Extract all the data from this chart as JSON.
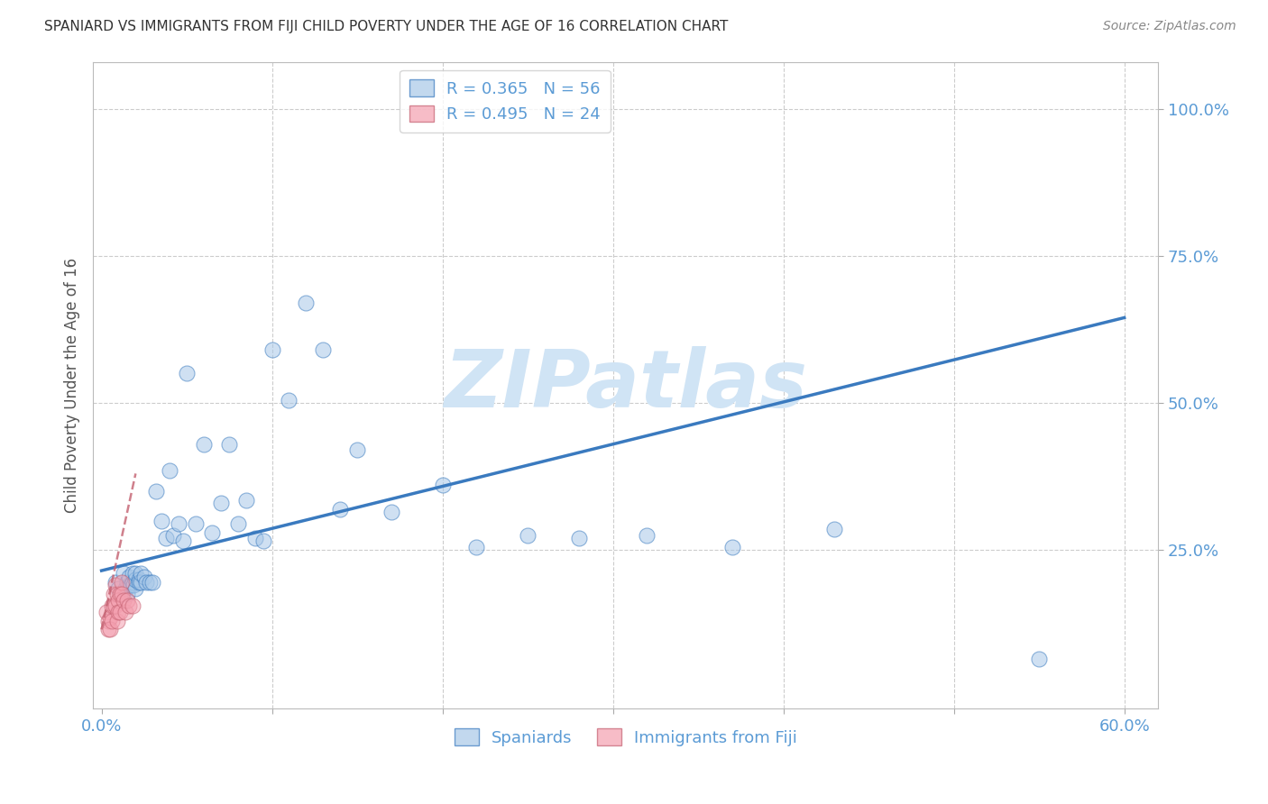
{
  "title": "SPANIARD VS IMMIGRANTS FROM FIJI CHILD POVERTY UNDER THE AGE OF 16 CORRELATION CHART",
  "source": "Source: ZipAtlas.com",
  "xlabel_label": "Spaniards",
  "xlabel_label2": "Immigrants from Fiji",
  "ylabel": "Child Poverty Under the Age of 16",
  "watermark": "ZIPatlas",
  "blue_R": 0.365,
  "blue_N": 56,
  "pink_R": 0.495,
  "pink_N": 24,
  "xlim": [
    -0.005,
    0.62
  ],
  "ylim": [
    -0.02,
    1.08
  ],
  "xticks": [
    0.0,
    0.1,
    0.2,
    0.3,
    0.4,
    0.5,
    0.6
  ],
  "yticks": [
    0.25,
    0.5,
    0.75,
    1.0
  ],
  "blue_scatter_x": [
    0.008,
    0.01,
    0.012,
    0.013,
    0.014,
    0.015,
    0.015,
    0.016,
    0.016,
    0.017,
    0.018,
    0.018,
    0.019,
    0.02,
    0.02,
    0.02,
    0.022,
    0.022,
    0.023,
    0.023,
    0.025,
    0.026,
    0.028,
    0.03,
    0.032,
    0.035,
    0.038,
    0.04,
    0.042,
    0.045,
    0.048,
    0.05,
    0.055,
    0.06,
    0.065,
    0.07,
    0.075,
    0.08,
    0.085,
    0.09,
    0.095,
    0.1,
    0.11,
    0.12,
    0.13,
    0.14,
    0.15,
    0.17,
    0.2,
    0.22,
    0.25,
    0.28,
    0.32,
    0.37,
    0.43,
    0.55
  ],
  "blue_scatter_y": [
    0.195,
    0.185,
    0.175,
    0.21,
    0.185,
    0.175,
    0.195,
    0.19,
    0.205,
    0.19,
    0.195,
    0.21,
    0.19,
    0.185,
    0.2,
    0.21,
    0.2,
    0.195,
    0.195,
    0.21,
    0.205,
    0.195,
    0.195,
    0.195,
    0.35,
    0.3,
    0.27,
    0.385,
    0.275,
    0.295,
    0.265,
    0.55,
    0.295,
    0.43,
    0.28,
    0.33,
    0.43,
    0.295,
    0.335,
    0.27,
    0.265,
    0.59,
    0.505,
    0.67,
    0.59,
    0.32,
    0.42,
    0.315,
    0.36,
    0.255,
    0.275,
    0.27,
    0.275,
    0.255,
    0.285,
    0.065
  ],
  "pink_scatter_x": [
    0.003,
    0.004,
    0.004,
    0.005,
    0.005,
    0.006,
    0.006,
    0.007,
    0.007,
    0.008,
    0.008,
    0.009,
    0.009,
    0.01,
    0.01,
    0.011,
    0.011,
    0.012,
    0.012,
    0.013,
    0.014,
    0.015,
    0.016,
    0.018
  ],
  "pink_scatter_y": [
    0.145,
    0.13,
    0.115,
    0.135,
    0.115,
    0.155,
    0.13,
    0.175,
    0.155,
    0.19,
    0.155,
    0.175,
    0.13,
    0.165,
    0.145,
    0.175,
    0.145,
    0.195,
    0.175,
    0.165,
    0.145,
    0.165,
    0.155,
    0.155
  ],
  "blue_trend_x": [
    0.0,
    0.6
  ],
  "blue_trend_y": [
    0.215,
    0.645
  ],
  "pink_trend_x": [
    0.0,
    0.02
  ],
  "pink_trend_y": [
    0.115,
    0.38
  ],
  "blue_color": "#a8c8e8",
  "pink_color": "#f4a0b0",
  "blue_line_color": "#3a7abf",
  "pink_line_color": "#c46070",
  "grid_color": "#cccccc",
  "title_color": "#333333",
  "axis_label_color": "#555555",
  "tick_color": "#5b9bd5",
  "watermark_color": "#d0e4f5",
  "bg_color": "#ffffff"
}
